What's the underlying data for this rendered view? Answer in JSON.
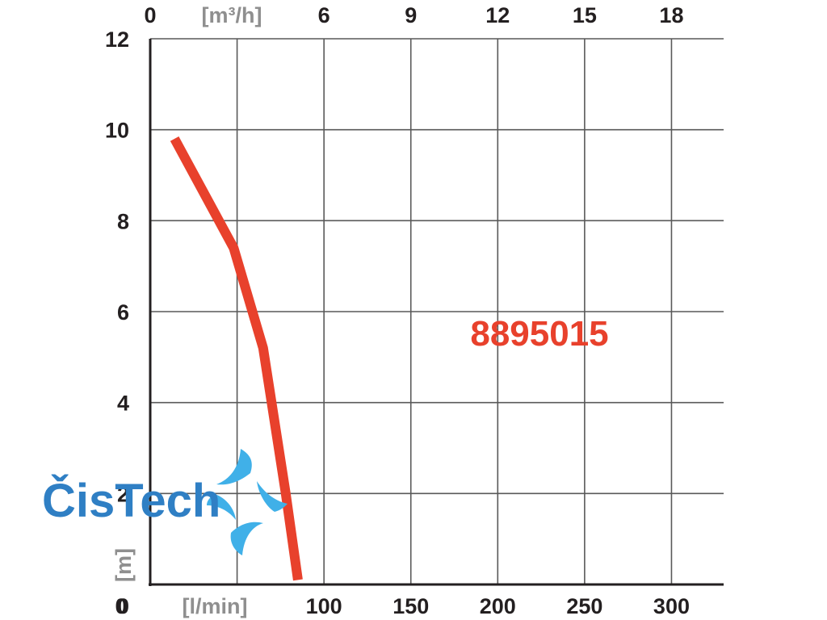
{
  "chart_data": {
    "type": "line",
    "title": "",
    "x": {
      "label": "[l/min]",
      "ticks": [
        "0",
        "100",
        "150",
        "200",
        "250",
        "300"
      ],
      "range": [
        0,
        330
      ]
    },
    "x_top": {
      "label": "[m³/h]",
      "ticks": [
        "0",
        "6",
        "9",
        "12",
        "15",
        "18"
      ]
    },
    "y": {
      "label": "[m]",
      "ticks": [
        "0",
        "2",
        "4",
        "6",
        "8",
        "10",
        "12"
      ],
      "range": [
        0,
        12
      ]
    },
    "grid": true,
    "series": [
      {
        "name": "8895015",
        "color": "#e8412c",
        "points": [
          [
            14,
            9.8
          ],
          [
            48,
            7.4
          ],
          [
            65,
            5.2
          ],
          [
            78,
            2.0
          ],
          [
            85,
            0.1
          ]
        ]
      }
    ]
  },
  "logo": {
    "text": "ČisTech",
    "colors": {
      "text": "#2f7fc4",
      "arrows": "#40b0e8"
    }
  },
  "colors": {
    "axis": "#231f20",
    "grid": "#595959",
    "curve": "#e8412c",
    "unit": "#8f8f8f"
  }
}
